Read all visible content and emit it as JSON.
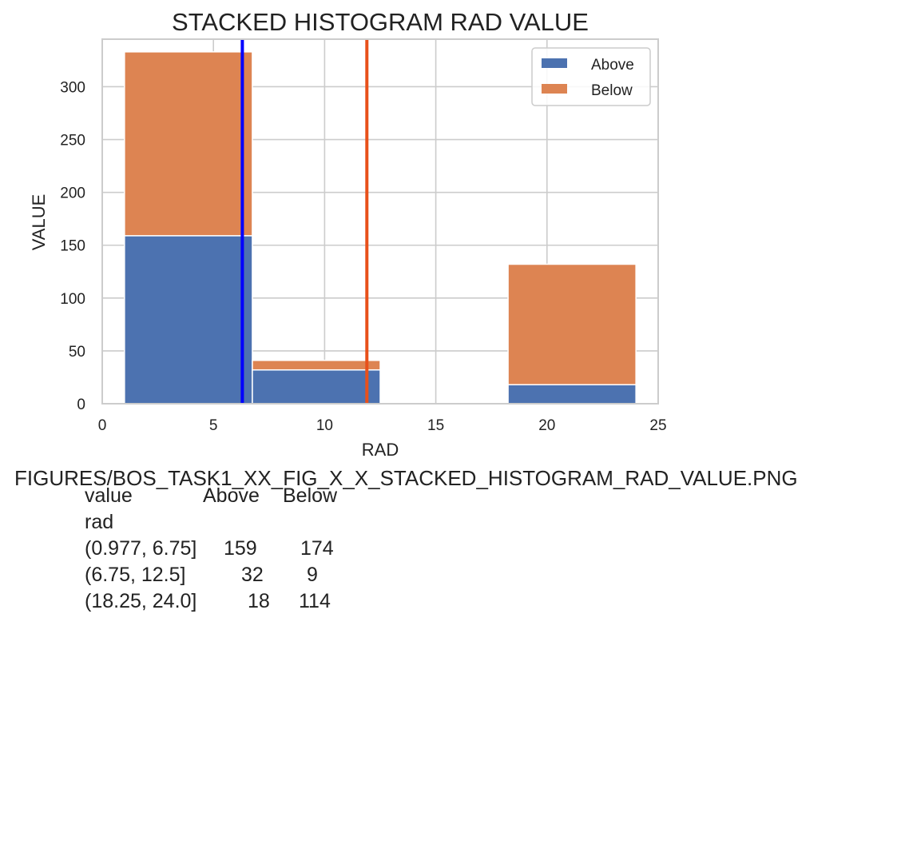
{
  "chart_data": {
    "type": "bar",
    "stacked": true,
    "title": "STACKED HISTOGRAM RAD VALUE",
    "xlabel": "RAD",
    "ylabel": "VALUE",
    "xlim": [
      0,
      25
    ],
    "ylim": [
      0,
      345
    ],
    "xticks": [
      0,
      5,
      10,
      15,
      20,
      25
    ],
    "yticks": [
      0,
      50,
      100,
      150,
      200,
      250,
      300
    ],
    "grid": true,
    "legend_position": "top-right",
    "bins": [
      [
        1,
        6.75
      ],
      [
        6.75,
        12.5
      ],
      [
        18.25,
        24.0
      ]
    ],
    "series": [
      {
        "name": "Above",
        "color": "#4c72b0",
        "values": [
          159,
          32,
          18
        ]
      },
      {
        "name": "Below",
        "color": "#dd8452",
        "values": [
          174,
          9,
          114
        ]
      }
    ],
    "vlines": [
      {
        "x": 6.3,
        "color": "#0000ff"
      },
      {
        "x": 11.9,
        "color": "#e8501a"
      }
    ]
  },
  "caption": "FIGURES/BOS_TASK1_XX_FIG_X_X_STACKED_HISTOGRAM_RAD_VALUE.PNG",
  "table": {
    "header": {
      "index": "value",
      "col1": "Above",
      "col2": "Below"
    },
    "index_name": "rad",
    "rows": [
      {
        "label": "(0.977, 6.75]",
        "above": "159",
        "below": "174"
      },
      {
        "label": "(6.75, 12.5]",
        "above": "32",
        "below": "9"
      },
      {
        "label": "(18.25, 24.0]",
        "above": "18",
        "below": "114"
      }
    ]
  }
}
